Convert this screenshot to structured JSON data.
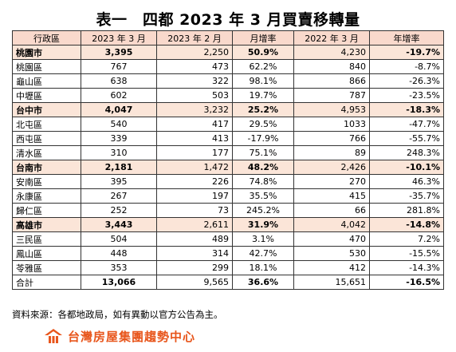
{
  "title": "表一　四都 2023 年 3 月買賣移轉量",
  "headers": [
    "行政區",
    "2023 年 3 月",
    "2023 年 2 月",
    "月增率",
    "2022 年 3 月",
    "年增率"
  ],
  "rows": [
    {
      "type": "city",
      "cells": [
        "桃園市",
        "3,395",
        "2,250",
        "50.9%",
        "4,230",
        "-19.7%"
      ]
    },
    {
      "type": "district",
      "cells": [
        "桃園區",
        "767",
        "473",
        "62.2%",
        "840",
        "-8.7%"
      ]
    },
    {
      "type": "district",
      "cells": [
        "龜山區",
        "638",
        "322",
        "98.1%",
        "866",
        "-26.3%"
      ]
    },
    {
      "type": "district",
      "cells": [
        "中壢區",
        "602",
        "503",
        "19.7%",
        "787",
        "-23.5%"
      ]
    },
    {
      "type": "city",
      "cells": [
        "台中市",
        "4,047",
        "3,232",
        "25.2%",
        "4,953",
        "-18.3%"
      ]
    },
    {
      "type": "district",
      "cells": [
        "北屯區",
        "540",
        "417",
        "29.5%",
        "1033",
        "-47.7%"
      ]
    },
    {
      "type": "district",
      "cells": [
        "西屯區",
        "339",
        "413",
        "-17.9%",
        "766",
        "-55.7%"
      ]
    },
    {
      "type": "district",
      "cells": [
        "清水區",
        "310",
        "177",
        "75.1%",
        "89",
        "248.3%"
      ]
    },
    {
      "type": "city",
      "cells": [
        "台南市",
        "2,181",
        "1,472",
        "48.2%",
        "2,426",
        "-10.1%"
      ]
    },
    {
      "type": "district",
      "cells": [
        "安南區",
        "395",
        "226",
        "74.8%",
        "270",
        "46.3%"
      ]
    },
    {
      "type": "district",
      "cells": [
        "永康區",
        "267",
        "197",
        "35.5%",
        "415",
        "-35.7%"
      ]
    },
    {
      "type": "district",
      "cells": [
        "歸仁區",
        "252",
        "73",
        "245.2%",
        "66",
        "281.8%"
      ]
    },
    {
      "type": "city",
      "cells": [
        "高雄市",
        "3,443",
        "2,611",
        "31.9%",
        "4,042",
        "-14.8%"
      ]
    },
    {
      "type": "district",
      "cells": [
        "三民區",
        "504",
        "489",
        "3.1%",
        "470",
        "7.2%"
      ]
    },
    {
      "type": "district",
      "cells": [
        "鳳山區",
        "448",
        "314",
        "42.7%",
        "530",
        "-15.5%"
      ]
    },
    {
      "type": "district",
      "cells": [
        "苓雅區",
        "353",
        "299",
        "18.1%",
        "412",
        "-14.3%"
      ]
    },
    {
      "type": "total",
      "cells": [
        "合計",
        "13,066",
        "9,565",
        "36.6%",
        "15,651",
        "-16.5%"
      ]
    }
  ],
  "source": "資料來源：各都地政局，如有異動以官方公告為主。",
  "logo": {
    "text": "台灣房屋集團趨勢中心",
    "icon": "taiwan-realty-logo-icon",
    "color": "#e8561c"
  }
}
